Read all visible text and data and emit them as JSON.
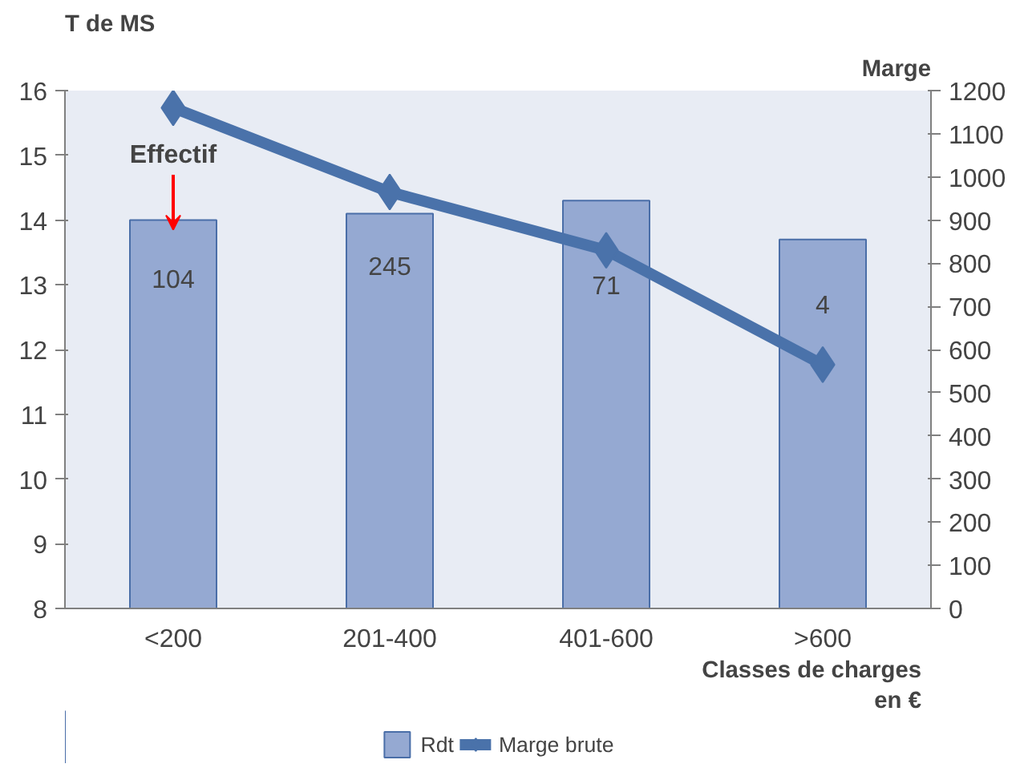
{
  "chart_data": {
    "type": "bar",
    "ylabel": "T de MS",
    "y2label": "Marge",
    "xlabel": "Classes de charges en €",
    "categories": [
      "<200",
      "201-400",
      "401-600",
      ">600"
    ],
    "series": [
      {
        "name": "Rdt",
        "color": "#95a9d2",
        "values": [
          14.0,
          14.1,
          14.3,
          13.7
        ]
      },
      {
        "name": "Marge brute",
        "type": "line",
        "axis": "y2",
        "color": "#4a72aa",
        "marker": "diamond",
        "values": [
          1160,
          965,
          830,
          565
        ]
      }
    ],
    "ylim": [
      8,
      16
    ],
    "yticks": [
      8,
      9,
      10,
      11,
      12,
      13,
      14,
      15,
      16
    ],
    "y2lim": [
      0,
      1200
    ],
    "y2ticks": [
      0,
      100,
      200,
      300,
      400,
      500,
      600,
      700,
      800,
      900,
      1000,
      1100,
      1200
    ],
    "annotations": [
      "Effectif",
      "104",
      "245",
      "71",
      "4"
    ],
    "grid": false,
    "legend": "bottom"
  }
}
